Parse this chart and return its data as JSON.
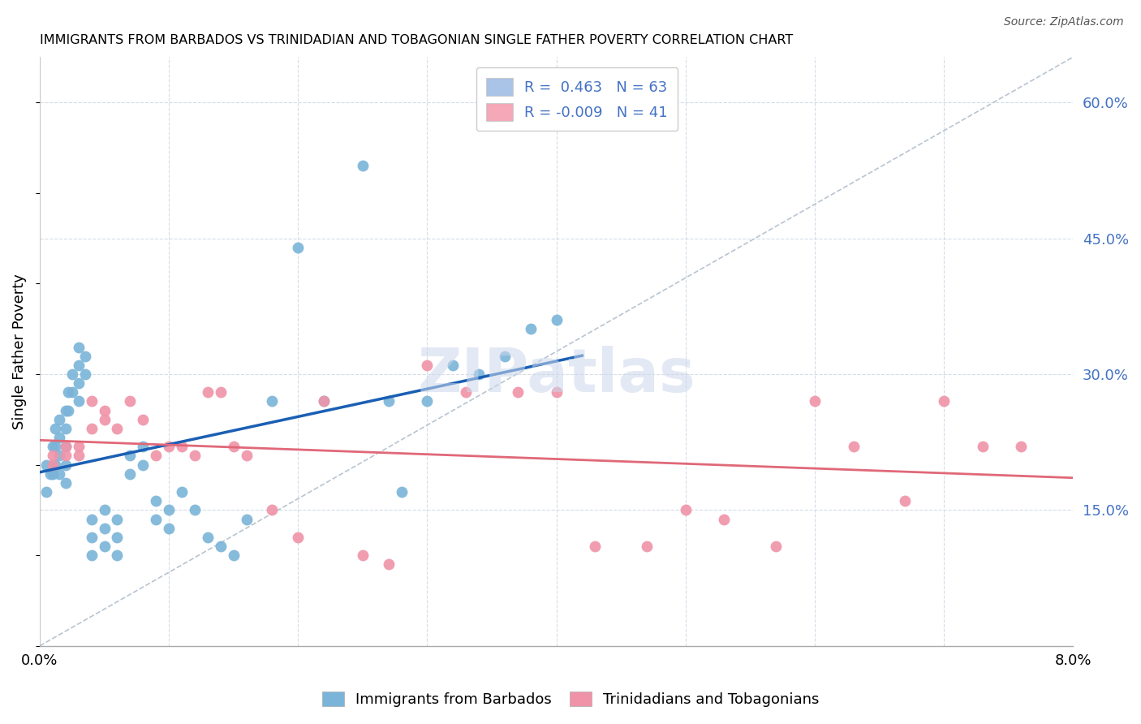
{
  "title": "IMMIGRANTS FROM BARBADOS VS TRINIDADIAN AND TOBAGONIAN SINGLE FATHER POVERTY CORRELATION CHART",
  "source": "Source: ZipAtlas.com",
  "ylabel": "Single Father Poverty",
  "xmin": 0.0,
  "xmax": 0.08,
  "ymin": 0.0,
  "ymax": 0.65,
  "ylabel_right_ticks": [
    "15.0%",
    "30.0%",
    "45.0%",
    "60.0%"
  ],
  "ylabel_right_vals": [
    0.15,
    0.3,
    0.45,
    0.6
  ],
  "legend_entries": [
    {
      "label_r": "R =  0.463",
      "label_n": "N = 63",
      "color": "#aac4e8"
    },
    {
      "label_r": "R = -0.009",
      "label_n": "N = 41",
      "color": "#f4a8b8"
    }
  ],
  "barbados_color": "#7ab4d8",
  "trinidadian_color": "#f093a8",
  "barbados_line_color": "#1a5fb4",
  "trinidadian_line_color": "#e06878",
  "dashed_line_color": "#b8c4d0",
  "barbados_x": [
    0.0005,
    0.0005,
    0.0008,
    0.001,
    0.001,
    0.001,
    0.0012,
    0.0012,
    0.0012,
    0.0015,
    0.0015,
    0.0015,
    0.0015,
    0.002,
    0.002,
    0.002,
    0.002,
    0.002,
    0.0022,
    0.0022,
    0.0025,
    0.0025,
    0.003,
    0.003,
    0.003,
    0.003,
    0.0035,
    0.0035,
    0.004,
    0.004,
    0.004,
    0.005,
    0.005,
    0.005,
    0.006,
    0.006,
    0.006,
    0.007,
    0.007,
    0.008,
    0.008,
    0.009,
    0.009,
    0.01,
    0.01,
    0.011,
    0.012,
    0.013,
    0.014,
    0.015,
    0.016,
    0.018,
    0.02,
    0.022,
    0.025,
    0.027,
    0.028,
    0.03,
    0.032,
    0.034,
    0.036,
    0.038,
    0.04
  ],
  "barbados_y": [
    0.2,
    0.17,
    0.19,
    0.22,
    0.2,
    0.19,
    0.24,
    0.22,
    0.2,
    0.25,
    0.23,
    0.21,
    0.19,
    0.26,
    0.24,
    0.22,
    0.2,
    0.18,
    0.28,
    0.26,
    0.3,
    0.28,
    0.33,
    0.31,
    0.29,
    0.27,
    0.32,
    0.3,
    0.14,
    0.12,
    0.1,
    0.15,
    0.13,
    0.11,
    0.14,
    0.12,
    0.1,
    0.21,
    0.19,
    0.22,
    0.2,
    0.16,
    0.14,
    0.15,
    0.13,
    0.17,
    0.15,
    0.12,
    0.11,
    0.1,
    0.14,
    0.27,
    0.44,
    0.27,
    0.53,
    0.27,
    0.17,
    0.27,
    0.31,
    0.3,
    0.32,
    0.35,
    0.36
  ],
  "trinidadian_x": [
    0.001,
    0.001,
    0.002,
    0.002,
    0.003,
    0.003,
    0.004,
    0.004,
    0.005,
    0.005,
    0.006,
    0.007,
    0.008,
    0.009,
    0.01,
    0.011,
    0.012,
    0.013,
    0.014,
    0.015,
    0.016,
    0.018,
    0.02,
    0.022,
    0.025,
    0.027,
    0.03,
    0.033,
    0.037,
    0.04,
    0.043,
    0.047,
    0.05,
    0.053,
    0.057,
    0.06,
    0.063,
    0.067,
    0.07,
    0.073,
    0.076
  ],
  "trinidadian_y": [
    0.21,
    0.2,
    0.22,
    0.21,
    0.22,
    0.21,
    0.27,
    0.24,
    0.26,
    0.25,
    0.24,
    0.27,
    0.25,
    0.21,
    0.22,
    0.22,
    0.21,
    0.28,
    0.28,
    0.22,
    0.21,
    0.15,
    0.12,
    0.27,
    0.1,
    0.09,
    0.31,
    0.28,
    0.28,
    0.28,
    0.11,
    0.11,
    0.15,
    0.14,
    0.11,
    0.27,
    0.22,
    0.16,
    0.27,
    0.22,
    0.22
  ]
}
